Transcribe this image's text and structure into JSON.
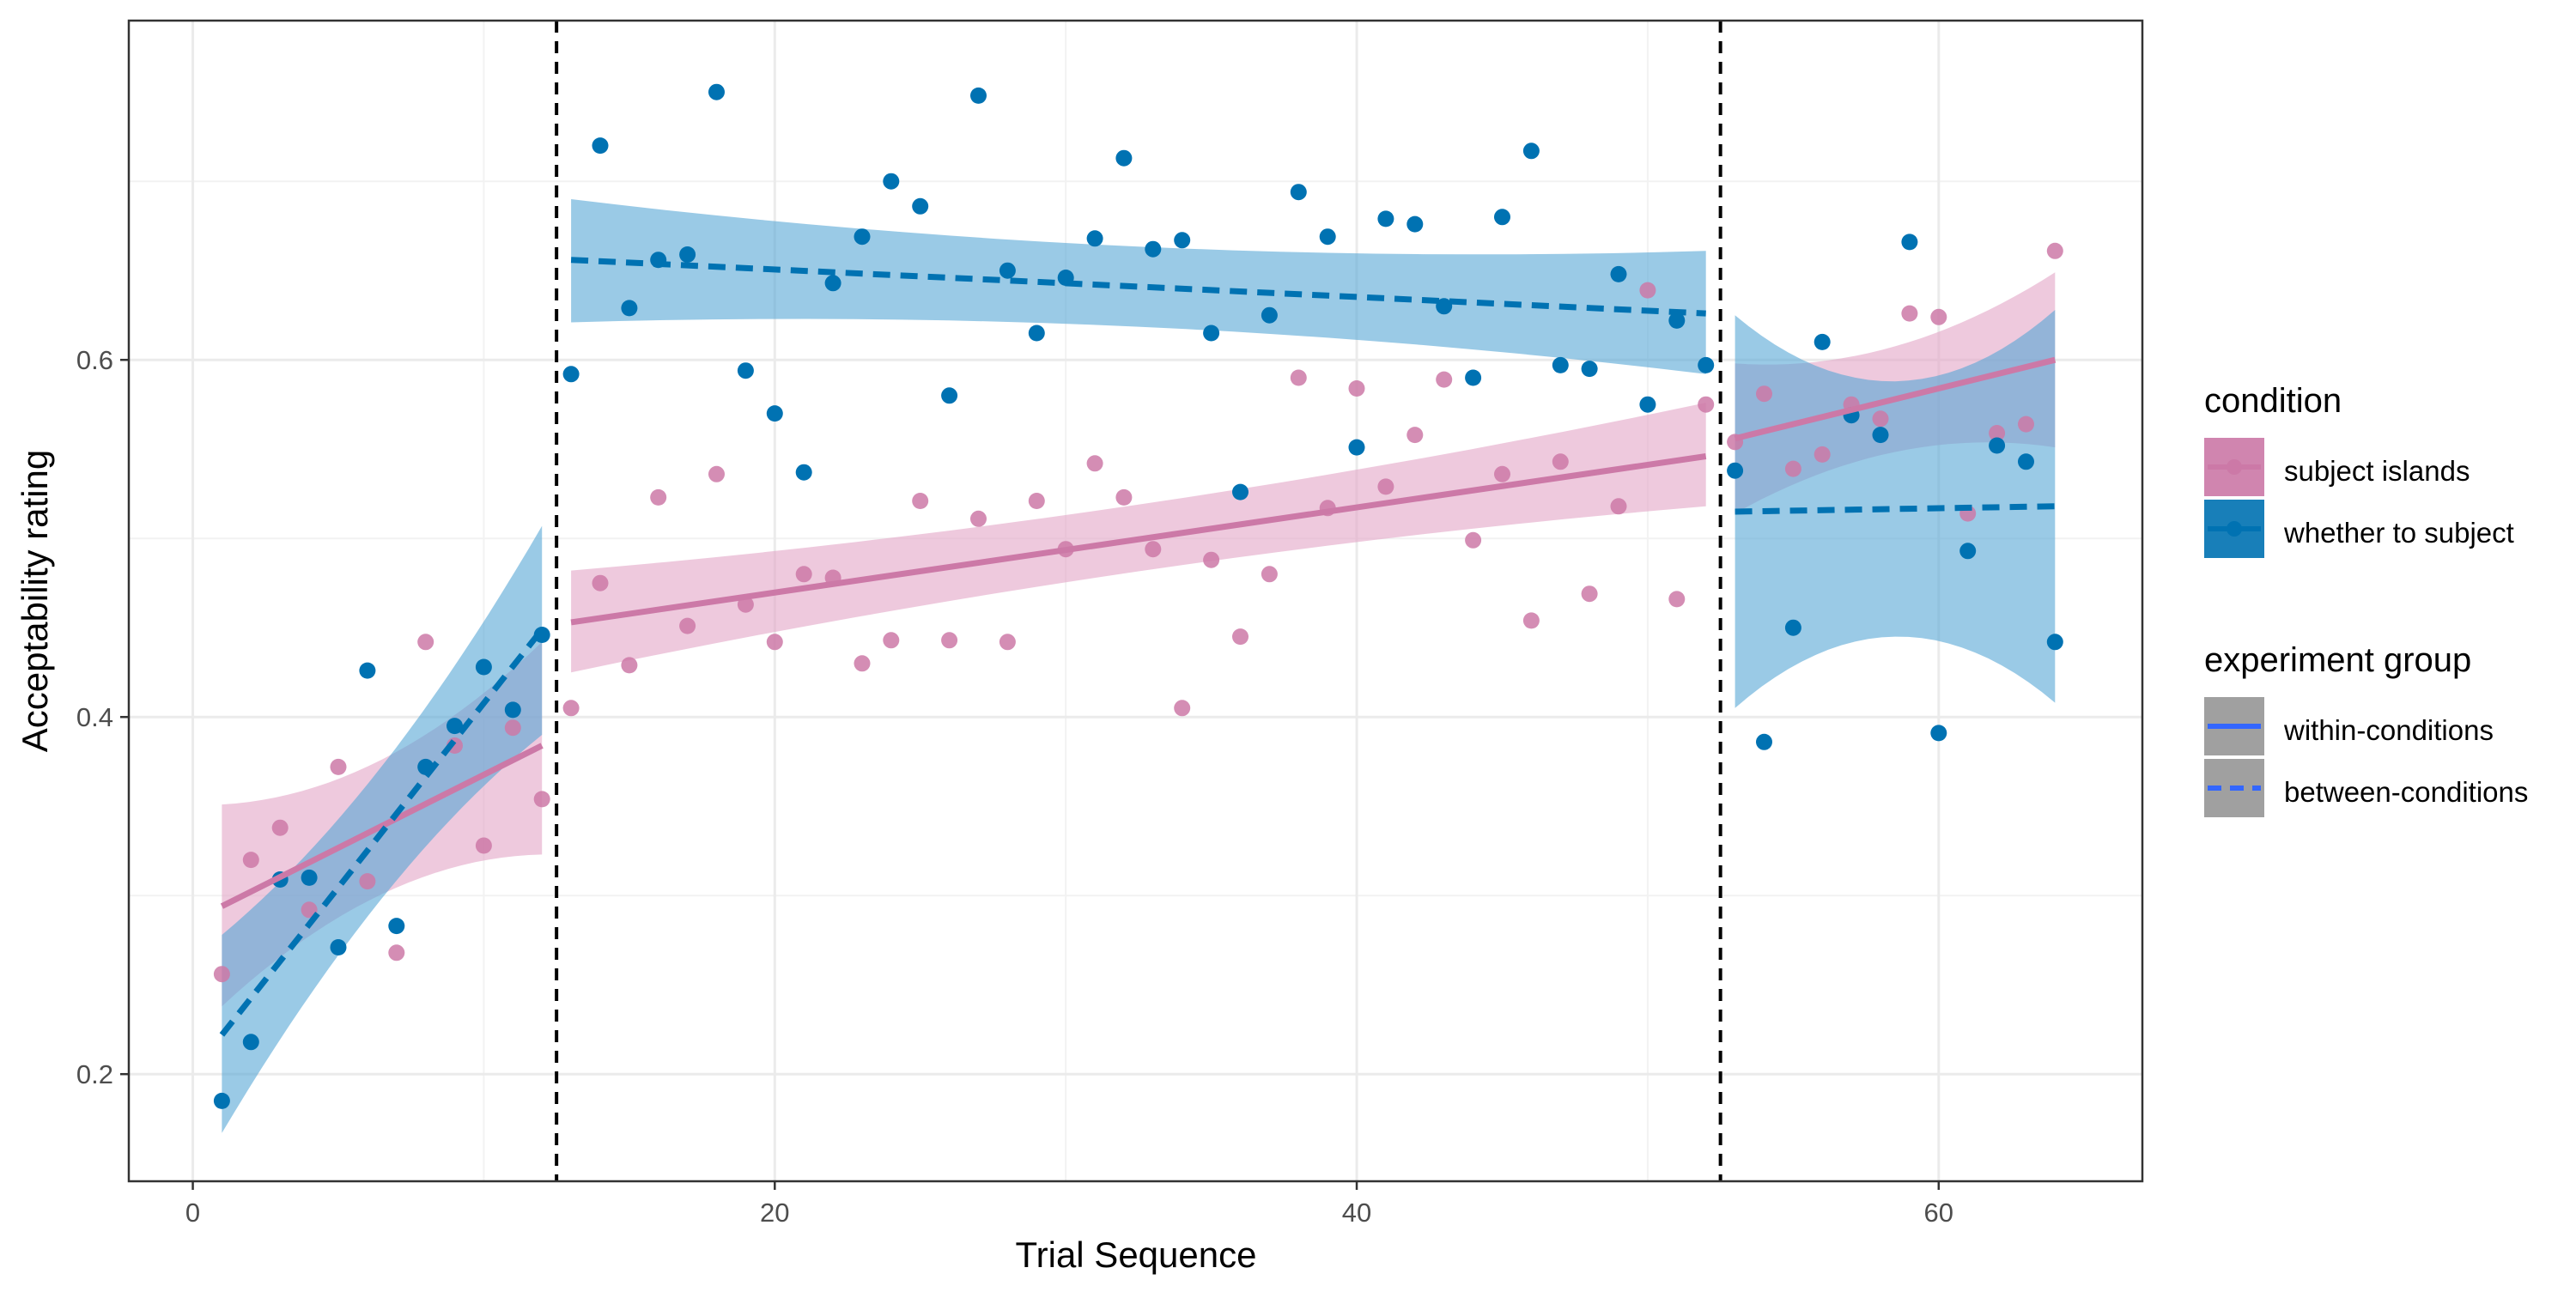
{
  "chart_data": {
    "type": "scatter",
    "xlabel": "Trial Sequence",
    "ylabel": "Acceptability rating",
    "xlim": [
      -2.2,
      67
    ],
    "ylim": [
      0.14,
      0.79
    ],
    "x_ticks": [
      0,
      20,
      40,
      60
    ],
    "x_tick_labels": [
      "0",
      "20",
      "40",
      "60"
    ],
    "y_ticks": [
      0.2,
      0.4,
      0.6
    ],
    "y_tick_labels": [
      "0.2",
      "0.4",
      "0.6"
    ],
    "grid": true,
    "vlines": [
      12.5,
      52.5
    ],
    "legend_position": "right",
    "legend": {
      "condition_title": "condition",
      "condition_entries": [
        "subject islands",
        "whether to subject"
      ],
      "group_title": "experiment group",
      "group_entries": [
        "within-conditions",
        "between-conditions"
      ]
    },
    "colors": {
      "subject islands": "#cc79a7",
      "whether to subject": "#0072b2",
      "subject islands ribbon": "#e2a5c6",
      "whether to subject ribbon": "#56a7d6",
      "legend line": "#3366ff",
      "legend key gray": "#a0a0a0"
    },
    "series": [
      {
        "name": "subject islands",
        "points": [
          [
            1,
            0.256
          ],
          [
            2,
            0.32
          ],
          [
            3,
            0.338
          ],
          [
            4,
            0.292
          ],
          [
            5,
            0.372
          ],
          [
            6,
            0.308
          ],
          [
            7,
            0.268
          ],
          [
            8,
            0.442
          ],
          [
            9,
            0.384
          ],
          [
            10,
            0.328
          ],
          [
            11,
            0.394
          ],
          [
            12,
            0.354
          ],
          [
            13,
            0.405
          ],
          [
            14,
            0.475
          ],
          [
            15,
            0.429
          ],
          [
            16,
            0.523
          ],
          [
            17,
            0.451
          ],
          [
            18,
            0.536
          ],
          [
            19,
            0.463
          ],
          [
            20,
            0.442
          ],
          [
            21,
            0.48
          ],
          [
            22,
            0.478
          ],
          [
            23,
            0.43
          ],
          [
            24,
            0.443
          ],
          [
            25,
            0.521
          ],
          [
            26,
            0.443
          ],
          [
            27,
            0.511
          ],
          [
            28,
            0.442
          ],
          [
            29,
            0.521
          ],
          [
            30,
            0.494
          ],
          [
            31,
            0.542
          ],
          [
            32,
            0.523
          ],
          [
            33,
            0.494
          ],
          [
            34,
            0.405
          ],
          [
            35,
            0.488
          ],
          [
            36,
            0.445
          ],
          [
            37,
            0.48
          ],
          [
            38,
            0.59
          ],
          [
            39,
            0.517
          ],
          [
            40,
            0.584
          ],
          [
            41,
            0.529
          ],
          [
            42,
            0.558
          ],
          [
            43,
            0.589
          ],
          [
            44,
            0.499
          ],
          [
            45,
            0.536
          ],
          [
            46,
            0.454
          ],
          [
            47,
            0.543
          ],
          [
            48,
            0.469
          ],
          [
            49,
            0.518
          ],
          [
            50,
            0.639
          ],
          [
            51,
            0.466
          ],
          [
            52,
            0.575
          ],
          [
            53,
            0.554
          ],
          [
            54,
            0.581
          ],
          [
            55,
            0.539
          ],
          [
            56,
            0.547
          ],
          [
            57,
            0.575
          ],
          [
            58,
            0.567
          ],
          [
            59,
            0.626
          ],
          [
            60,
            0.624
          ],
          [
            61,
            0.514
          ],
          [
            62,
            0.559
          ],
          [
            63,
            0.564
          ],
          [
            64,
            0.661
          ]
        ],
        "fits": [
          {
            "group": "within-conditions",
            "x": [
              1,
              12
            ],
            "fit": [
              0.294,
              0.384
            ],
            "lower": [
              0.238,
              0.323
            ],
            "upper": [
              0.351,
              0.442
            ]
          },
          {
            "group": "within-conditions",
            "x": [
              13,
              52
            ],
            "fit": [
              0.453,
              0.546
            ],
            "lower": [
              0.425,
              0.518
            ],
            "upper": [
              0.482,
              0.576
            ]
          },
          {
            "group": "within-conditions",
            "x": [
              53,
              64
            ],
            "fit": [
              0.556,
              0.6
            ],
            "lower": [
              0.514,
              0.551
            ],
            "upper": [
              0.598,
              0.649
            ]
          }
        ]
      },
      {
        "name": "whether to subject",
        "points": [
          [
            1,
            0.185
          ],
          [
            2,
            0.218
          ],
          [
            3,
            0.309
          ],
          [
            4,
            0.31
          ],
          [
            5,
            0.271
          ],
          [
            6,
            0.426
          ],
          [
            7,
            0.283
          ],
          [
            8,
            0.372
          ],
          [
            9,
            0.395
          ],
          [
            10,
            0.428
          ],
          [
            11,
            0.404
          ],
          [
            12,
            0.446
          ],
          [
            13,
            0.592
          ],
          [
            14,
            0.72
          ],
          [
            15,
            0.629
          ],
          [
            16,
            0.656
          ],
          [
            17,
            0.659
          ],
          [
            18,
            0.75
          ],
          [
            19,
            0.594
          ],
          [
            20,
            0.57
          ],
          [
            21,
            0.537
          ],
          [
            22,
            0.643
          ],
          [
            23,
            0.669
          ],
          [
            24,
            0.7
          ],
          [
            25,
            0.686
          ],
          [
            26,
            0.58
          ],
          [
            27,
            0.748
          ],
          [
            28,
            0.65
          ],
          [
            29,
            0.615
          ],
          [
            30,
            0.646
          ],
          [
            31,
            0.668
          ],
          [
            32,
            0.713
          ],
          [
            33,
            0.662
          ],
          [
            34,
            0.667
          ],
          [
            35,
            0.615
          ],
          [
            36,
            0.526
          ],
          [
            37,
            0.625
          ],
          [
            38,
            0.694
          ],
          [
            39,
            0.669
          ],
          [
            40,
            0.551
          ],
          [
            41,
            0.679
          ],
          [
            42,
            0.676
          ],
          [
            43,
            0.63
          ],
          [
            44,
            0.59
          ],
          [
            45,
            0.68
          ],
          [
            46,
            0.717
          ],
          [
            47,
            0.597
          ],
          [
            48,
            0.595
          ],
          [
            49,
            0.648
          ],
          [
            50,
            0.575
          ],
          [
            51,
            0.622
          ],
          [
            52,
            0.597
          ],
          [
            53,
            0.538
          ],
          [
            54,
            0.386
          ],
          [
            55,
            0.45
          ],
          [
            56,
            0.61
          ],
          [
            57,
            0.569
          ],
          [
            58,
            0.558
          ],
          [
            59,
            0.666
          ],
          [
            60,
            0.391
          ],
          [
            61,
            0.493
          ],
          [
            62,
            0.552
          ],
          [
            63,
            0.543
          ],
          [
            64,
            0.442
          ]
        ],
        "fits": [
          {
            "group": "between-conditions",
            "x": [
              1,
              12
            ],
            "fit": [
              0.222,
              0.449
            ],
            "lower": [
              0.167,
              0.39
            ],
            "upper": [
              0.278,
              0.507
            ]
          },
          {
            "group": "between-conditions",
            "x": [
              13,
              52
            ],
            "fit": [
              0.656,
              0.626
            ],
            "lower": [
              0.621,
              0.592
            ],
            "upper": [
              0.69,
              0.661
            ]
          },
          {
            "group": "between-conditions",
            "x": [
              53,
              64
            ],
            "fit": [
              0.515,
              0.518
            ],
            "lower": [
              0.405,
              0.408
            ],
            "upper": [
              0.625,
              0.628
            ]
          }
        ]
      }
    ]
  }
}
